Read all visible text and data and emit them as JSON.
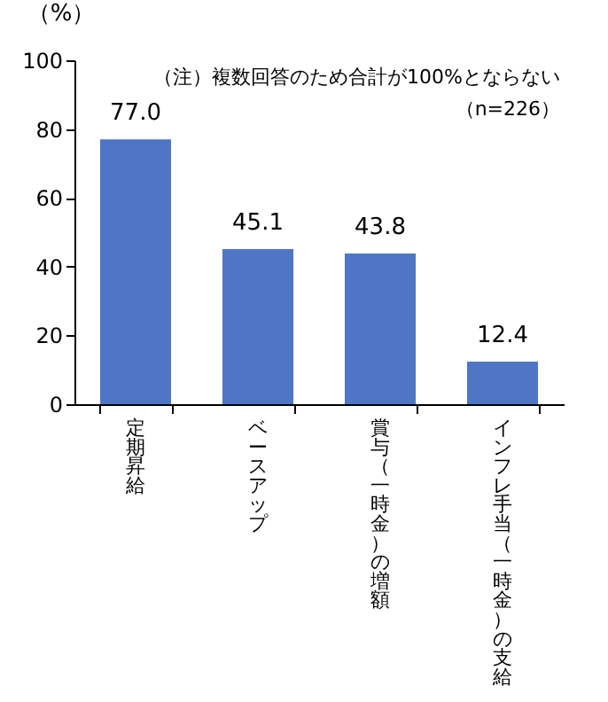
{
  "chart_data": {
    "type": "bar",
    "ylabel": "（%）",
    "categories": [
      "定期昇給",
      "ベースアップ",
      "賞与（一時金）の増額",
      "インフレ手当（一時金）の支給"
    ],
    "values": [
      77.0,
      45.1,
      43.8,
      12.4
    ],
    "value_labels": [
      "77.0",
      "45.1",
      "43.8",
      "12.4"
    ],
    "color": "#4f76c4",
    "ylim": [
      0,
      100
    ],
    "yticks": [
      0,
      20,
      40,
      60,
      80,
      100
    ],
    "grid": false,
    "annotations": [
      "（注）複数回答のため合計が100%とならない",
      "（n=226）"
    ]
  }
}
